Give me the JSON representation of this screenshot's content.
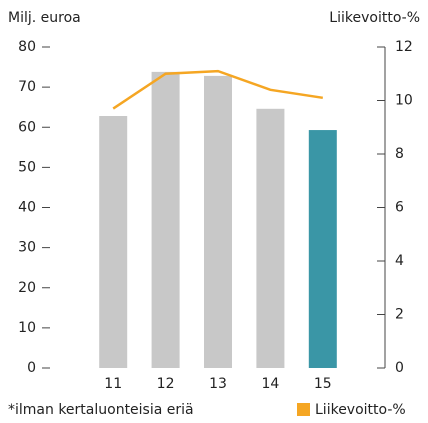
{
  "chart_data": {
    "type": "bar",
    "y_label": "Milj. euroa",
    "y2_label": "Liikevoitto-%",
    "footnote": "*ilman kertaluonteisia eriä",
    "categories": [
      "11",
      "12",
      "13",
      "14",
      "15"
    ],
    "series": [
      {
        "values": [
          62.8,
          73.8,
          72.8,
          64.6,
          59.3
        ],
        "colors": [
          "#c8c8c8",
          "#c8c8c8",
          "#c8c8c8",
          "#c8c8c8",
          "#3a96a6"
        ]
      },
      {
        "name": "Liikevoitto-%",
        "color": "#f5a623",
        "values": [
          9.7,
          11.0,
          11.1,
          10.4,
          10.1
        ],
        "axis": "y2",
        "type": "line"
      }
    ],
    "ylim": [
      0,
      80
    ],
    "yticks": [
      0,
      10,
      20,
      30,
      40,
      50,
      60,
      70,
      80
    ],
    "y2lim": [
      0,
      12
    ],
    "y2ticks": [
      0,
      2,
      4,
      6,
      8,
      10,
      12
    ],
    "legend": "bottom-right"
  }
}
